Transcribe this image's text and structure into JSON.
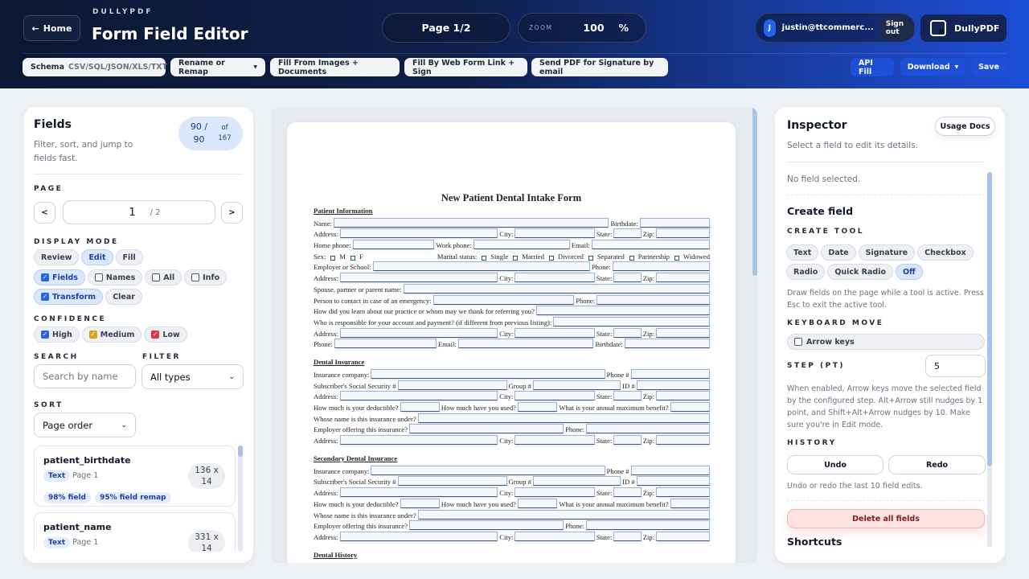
{
  "header": {
    "home": "Home",
    "brand": "DULLYPDF",
    "title": "Form Field Editor",
    "page_indicator": "Page 1/2",
    "zoom_label": "ZOOM",
    "zoom_value": "100",
    "zoom_unit": "%",
    "user_initial": "J",
    "user_email": "justin@ttcommerc...",
    "sign_out": "Sign out",
    "app_button": "DullyPDF"
  },
  "toolbar": {
    "schema_label": "Schema",
    "schema_value": "CSV/SQL/JSON/XLS/TXT",
    "rename": "Rename or Remap",
    "fill_images": "Fill From Images + Documents",
    "fill_web": "Fill By Web Form Link + Sign",
    "send_sig": "Send PDF for Signature by email",
    "api_fill": "API Fill",
    "download": "Download",
    "save": "Save"
  },
  "fields_panel": {
    "title": "Fields",
    "subtitle": "Filter, sort, and jump to fields fast.",
    "count": "90 / 90",
    "of": "of 167",
    "page_label": "PAGE",
    "page_value": "1",
    "page_total": "/ 2",
    "display_label": "DISPLAY MODE",
    "modes": [
      "Review",
      "Edit",
      "Fill"
    ],
    "active_mode": "Edit",
    "toggles": [
      {
        "label": "Fields",
        "checked": true
      },
      {
        "label": "Names",
        "checked": false
      },
      {
        "label": "All",
        "checked": false
      },
      {
        "label": "Info",
        "checked": false
      }
    ],
    "transform": {
      "label": "Transform",
      "checked": true
    },
    "clear": "Clear",
    "confidence_label": "CONFIDENCE",
    "confidence": [
      {
        "label": "High",
        "checked": true,
        "color": "#2563eb"
      },
      {
        "label": "Medium",
        "checked": true,
        "color": "#e0a020"
      },
      {
        "label": "Low",
        "checked": true,
        "color": "#dc3545"
      }
    ],
    "search_label": "SEARCH",
    "search_placeholder": "Search by name",
    "filter_label": "FILTER",
    "filter_value": "All types",
    "sort_label": "SORT",
    "sort_value": "Page order",
    "items": [
      {
        "name": "patient_birthdate",
        "type": "Text",
        "page": "Page 1",
        "tags": [
          "98% field",
          "95% field remap"
        ],
        "size": "136 x 14"
      },
      {
        "name": "patient_name",
        "type": "Text",
        "page": "Page 1",
        "tags": [],
        "size": "331 x 14"
      }
    ]
  },
  "form": {
    "title": "New Patient Dental Intake Form",
    "sections": [
      {
        "heading": "Patient Information",
        "rows": [
          [
            "Name:",
            "Birthdate:"
          ],
          [
            "Address:",
            "City:",
            "State:",
            "Zip:"
          ],
          [
            "Home phone:",
            "Work phone:",
            "Email:"
          ],
          {
            "sex": "Sex:",
            "sex_opts": [
              "M",
              "F"
            ],
            "marital": "Marital status:",
            "marital_opts": [
              "Single",
              "Married",
              "Divorced",
              "Separated",
              "Partnership",
              "Widowed"
            ]
          },
          [
            "Employer or School:",
            "Phone:"
          ],
          [
            "Address:",
            "City:",
            "State:",
            "Zip:"
          ],
          [
            "Spouse, partner or parent name:"
          ],
          [
            "Person to contact in case of an emergency:",
            "Phone:"
          ],
          [
            "How did you learn about our practice or whom may we thank for referring you?"
          ],
          [
            "Who is responsible for your account and payment? (if different from previous listing):"
          ],
          [
            "Address:",
            "City:",
            "State:",
            "Zip:"
          ],
          [
            "Phone:",
            "Email:",
            "Birthdate:"
          ]
        ]
      },
      {
        "heading": "Dental Insurance",
        "rows": [
          [
            "Insurance company:",
            "Phone #"
          ],
          [
            "Subscriber's Social Security #",
            "Group #",
            "ID #"
          ],
          [
            "Address:",
            "City:",
            "State:",
            "Zip:"
          ],
          [
            "How much is your deductible?",
            "How much have you used?",
            "What is your annual maximum benefit?"
          ],
          [
            "Whose name is this insurance under?"
          ],
          [
            "Employer offering this insurance?",
            "Phone:"
          ],
          [
            "Address:",
            "City:",
            "State:",
            "Zip:"
          ]
        ]
      },
      {
        "heading": "Secondary Dental Insurance",
        "rows": [
          [
            "Insurance company:",
            "Phone #"
          ],
          [
            "Subscriber's Social Security #",
            "Group #",
            "ID #"
          ],
          [
            "Address:",
            "City:",
            "State:",
            "Zip:"
          ],
          [
            "How much is your deductible?",
            "How much have you used?",
            "What is your annual maximum benefit?"
          ],
          [
            "Whose name is this insurance under?"
          ],
          [
            "Employer offering this insurance?",
            "Phone:"
          ],
          [
            "Address:",
            "City:",
            "State:",
            "Zip:"
          ]
        ]
      },
      {
        "heading": "Dental History",
        "rows": []
      }
    ]
  },
  "inspector": {
    "title": "Inspector",
    "usage_docs": "Usage Docs",
    "subtitle": "Select a field to edit its details.",
    "no_field": "No field selected.",
    "create_title": "Create field",
    "create_tool_label": "CREATE TOOL",
    "tools": [
      "Text",
      "Date",
      "Signature",
      "Checkbox",
      "Radio",
      "Quick Radio",
      "Off"
    ],
    "active_tool": "Off",
    "tool_help": "Draw fields on the page while a tool is active. Press Esc to exit the active tool.",
    "keyboard_label": "KEYBOARD MOVE",
    "arrow_keys": "Arrow keys",
    "step_label": "STEP (PT)",
    "step_value": "5",
    "step_help": "When enabled, Arrow keys move the selected field by the configured step. Alt+Arrow still nudges by 1 point, and Shift+Alt+Arrow nudges by 10. Make sure you're in Edit mode.",
    "history_label": "HISTORY",
    "undo": "Undo",
    "redo": "Redo",
    "history_help": "Undo or redo the last 10 field edits.",
    "delete_all": "Delete all fields",
    "shortcuts": "Shortcuts"
  }
}
